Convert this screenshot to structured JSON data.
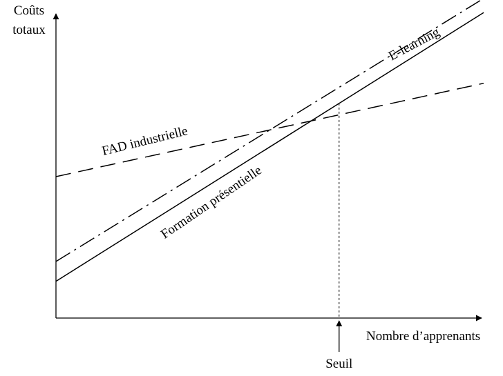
{
  "chart_data": {
    "type": "line",
    "title": "",
    "ylabel": [
      "Coûts",
      "totaux"
    ],
    "xlabel": "Nombre d’apprenants",
    "xlim": [
      0,
      100
    ],
    "ylim": [
      0,
      100
    ],
    "grid": false,
    "legend": "none",
    "series": [
      {
        "name": "Formation présentielle",
        "style": "solid",
        "x": [
          0,
          100
        ],
        "y": [
          13,
          108
        ]
      },
      {
        "name": "E-learning",
        "style": "dash-dot",
        "x": [
          0,
          100
        ],
        "y": [
          20,
          113
        ]
      },
      {
        "name": "FAD industrielle",
        "style": "dashed",
        "x": [
          0,
          100
        ],
        "y": [
          50,
          83
        ]
      }
    ],
    "threshold": {
      "label": "Seuil",
      "x": 66.2
    }
  }
}
